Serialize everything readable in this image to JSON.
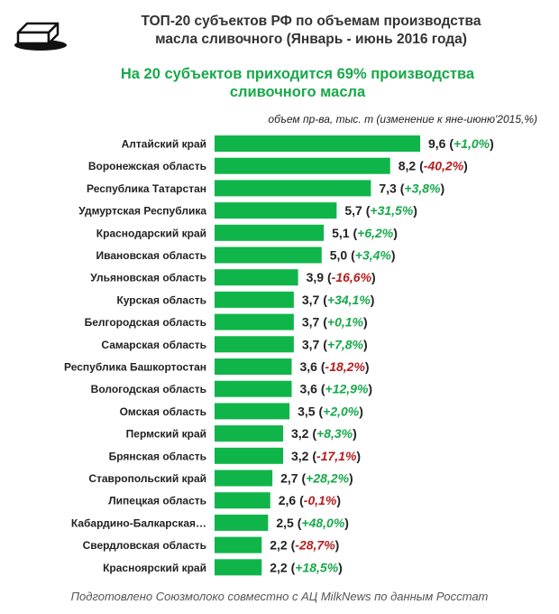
{
  "header": {
    "title_line1": "ТОП-20 субъектов РФ по объемам производства",
    "title_line2": "масла сливочного (Январь - июнь 2016 года)",
    "subtitle_line1": "На 20 субъектов приходится 69% производства",
    "subtitle_line2": "сливочного масла",
    "units_note": "объем пр-ва, тыс. т  (изменение  к яне-июню'2015,%)"
  },
  "footer": "Подготовлено Союзмолоко совместно с АЦ MilkNews по данным Росстат",
  "logo_icon": "butter-block-icon",
  "colors": {
    "bar": "#10b54a",
    "positive": "#17a84a",
    "negative": "#b51d1d"
  },
  "chart_data": {
    "type": "bar",
    "orientation": "horizontal",
    "categories": [
      "Алтайский край",
      "Воронежская область",
      "Республика Татарстан",
      "Удмуртская Республика",
      "Краснодарский край",
      "Ивановская область",
      "Ульяновская область",
      "Курская область",
      "Белгородская область",
      "Самарская область",
      "Республика Башкортостан",
      "Вологодская область",
      "Омская область",
      "Пермский край",
      "Брянская область",
      "Ставропольский край",
      "Липецкая область",
      "Кабардино-Балкарская…",
      "Свердловская область",
      "Красноярский край"
    ],
    "values": [
      9.6,
      8.2,
      7.3,
      5.7,
      5.1,
      5.0,
      3.9,
      3.7,
      3.7,
      3.7,
      3.6,
      3.6,
      3.5,
      3.2,
      3.2,
      2.7,
      2.6,
      2.5,
      2.2,
      2.2
    ],
    "value_labels": [
      "9,6",
      "8,2",
      "7,3",
      "5,7",
      "5,1",
      "5,0",
      "3,9",
      "3,7",
      "3,7",
      "3,7",
      "3,6",
      "3,6",
      "3,5",
      "3,2",
      "3,2",
      "2,7",
      "2,6",
      "2,5",
      "2,2",
      "2,2"
    ],
    "changes": [
      "+1,0%",
      "-40,2%",
      "+3,8%",
      "+31,5%",
      "+6,2%",
      "+3,4%",
      "-16,6%",
      "+34,1%",
      "+0,1%",
      "+7,8%",
      "-18,2%",
      "+12,9%",
      "+2,0%",
      "+8,3%",
      "-17,1%",
      "+28,2%",
      "-0,1%",
      "+48,0%",
      "-28,7%",
      "+18,5%"
    ],
    "xlim": [
      0,
      9.6
    ],
    "grid": false,
    "legend": "none"
  }
}
